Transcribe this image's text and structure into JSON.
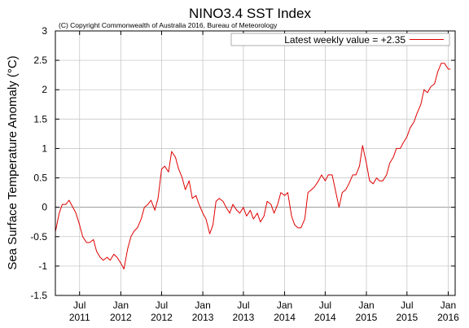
{
  "chart_data": {
    "type": "line",
    "title": "NINO3.4 SST Index",
    "subtitle": "(C) Copyright Commonwealth of Australia 2016, Bureau of Meteorology",
    "ylabel": "Sea Surface Temperature Anomaly (°C)",
    "xlabel": "",
    "ylim": [
      -1.5,
      3
    ],
    "yticks": [
      -1.5,
      -1,
      -0.5,
      0,
      0.5,
      1,
      1.5,
      2,
      2.5,
      3
    ],
    "ytick_labels": [
      "-1.5",
      "-1",
      "-0.5",
      "0",
      "0.5",
      "1",
      "1.5",
      "2",
      "2.5",
      "3"
    ],
    "xlim": [
      "2011-03-15",
      "2016-02-01"
    ],
    "xticks": [
      {
        "date": "2011-07-01",
        "month": "Jul",
        "year": "2011"
      },
      {
        "date": "2012-01-01",
        "month": "Jan",
        "year": "2012"
      },
      {
        "date": "2012-07-01",
        "month": "Jul",
        "year": "2012"
      },
      {
        "date": "2013-01-01",
        "month": "Jan",
        "year": "2013"
      },
      {
        "date": "2013-07-01",
        "month": "Jul",
        "year": "2013"
      },
      {
        "date": "2014-01-01",
        "month": "Jan",
        "year": "2014"
      },
      {
        "date": "2014-07-01",
        "month": "Jul",
        "year": "2014"
      },
      {
        "date": "2015-01-01",
        "month": "Jan",
        "year": "2015"
      },
      {
        "date": "2015-07-01",
        "month": "Jul",
        "year": "2015"
      },
      {
        "date": "2016-01-01",
        "month": "Jan",
        "year": "2016"
      }
    ],
    "grid": true,
    "legend_position": "top-right",
    "series": [
      {
        "name": "Latest weekly value = +2.35",
        "color": "#e00000",
        "x": [
          "2011-03-16",
          "2011-04-01",
          "2011-04-15",
          "2011-05-01",
          "2011-05-15",
          "2011-06-01",
          "2011-06-15",
          "2011-07-01",
          "2011-07-15",
          "2011-08-01",
          "2011-08-15",
          "2011-09-01",
          "2011-09-15",
          "2011-10-01",
          "2011-10-15",
          "2011-11-01",
          "2011-11-15",
          "2011-12-01",
          "2011-12-15",
          "2012-01-01",
          "2012-01-15",
          "2012-02-01",
          "2012-02-15",
          "2012-03-01",
          "2012-03-15",
          "2012-04-01",
          "2012-04-15",
          "2012-05-01",
          "2012-05-15",
          "2012-06-01",
          "2012-06-15",
          "2012-07-01",
          "2012-07-15",
          "2012-08-01",
          "2012-08-15",
          "2012-09-01",
          "2012-09-15",
          "2012-10-01",
          "2012-10-15",
          "2012-11-01",
          "2012-11-15",
          "2012-12-01",
          "2012-12-15",
          "2013-01-01",
          "2013-01-15",
          "2013-02-01",
          "2013-02-15",
          "2013-03-01",
          "2013-03-15",
          "2013-04-01",
          "2013-04-15",
          "2013-05-01",
          "2013-05-15",
          "2013-06-01",
          "2013-06-15",
          "2013-07-01",
          "2013-07-15",
          "2013-08-01",
          "2013-08-15",
          "2013-09-01",
          "2013-09-15",
          "2013-10-01",
          "2013-10-15",
          "2013-11-01",
          "2013-11-15",
          "2013-12-01",
          "2013-12-15",
          "2014-01-01",
          "2014-01-15",
          "2014-02-01",
          "2014-02-15",
          "2014-03-01",
          "2014-03-15",
          "2014-04-01",
          "2014-04-15",
          "2014-05-01",
          "2014-05-15",
          "2014-06-01",
          "2014-06-15",
          "2014-07-01",
          "2014-07-15",
          "2014-08-01",
          "2014-08-15",
          "2014-09-01",
          "2014-09-15",
          "2014-10-01",
          "2014-10-15",
          "2014-11-01",
          "2014-11-15",
          "2014-12-01",
          "2014-12-15",
          "2015-01-01",
          "2015-01-15",
          "2015-02-01",
          "2015-02-15",
          "2015-03-01",
          "2015-03-15",
          "2015-04-01",
          "2015-04-15",
          "2015-05-01",
          "2015-05-15",
          "2015-06-01",
          "2015-06-15",
          "2015-07-01",
          "2015-07-15",
          "2015-08-01",
          "2015-08-15",
          "2015-09-01",
          "2015-09-15",
          "2015-10-01",
          "2015-10-15",
          "2015-11-01",
          "2015-11-15",
          "2015-12-01",
          "2015-12-15",
          "2016-01-01",
          "2016-01-11"
        ],
        "y": [
          -0.4,
          -0.1,
          0.05,
          0.05,
          0.12,
          0.0,
          -0.1,
          -0.3,
          -0.5,
          -0.6,
          -0.6,
          -0.55,
          -0.75,
          -0.85,
          -0.9,
          -0.85,
          -0.9,
          -0.8,
          -0.85,
          -0.95,
          -1.05,
          -0.7,
          -0.5,
          -0.4,
          -0.35,
          -0.2,
          0.0,
          0.05,
          0.12,
          -0.05,
          0.15,
          0.65,
          0.7,
          0.6,
          0.95,
          0.85,
          0.65,
          0.5,
          0.3,
          0.45,
          0.15,
          0.2,
          0.05,
          -0.1,
          -0.2,
          -0.45,
          -0.3,
          0.1,
          0.15,
          0.1,
          0.0,
          -0.1,
          0.05,
          -0.05,
          -0.1,
          0.0,
          -0.15,
          -0.05,
          -0.2,
          -0.1,
          -0.25,
          -0.15,
          0.1,
          0.05,
          -0.1,
          0.05,
          0.25,
          0.2,
          0.25,
          -0.15,
          -0.3,
          -0.35,
          -0.35,
          -0.2,
          0.25,
          0.3,
          0.35,
          0.45,
          0.55,
          0.45,
          0.55,
          0.55,
          0.3,
          0.0,
          0.25,
          0.3,
          0.4,
          0.55,
          0.55,
          0.7,
          1.05,
          0.75,
          0.45,
          0.4,
          0.5,
          0.45,
          0.45,
          0.55,
          0.75,
          0.85,
          1.0,
          1.0,
          1.1,
          1.2,
          1.35,
          1.45,
          1.6,
          1.75,
          2.0,
          1.95,
          2.05,
          2.1,
          2.3,
          2.45,
          2.45,
          2.35,
          2.35
        ]
      }
    ]
  }
}
